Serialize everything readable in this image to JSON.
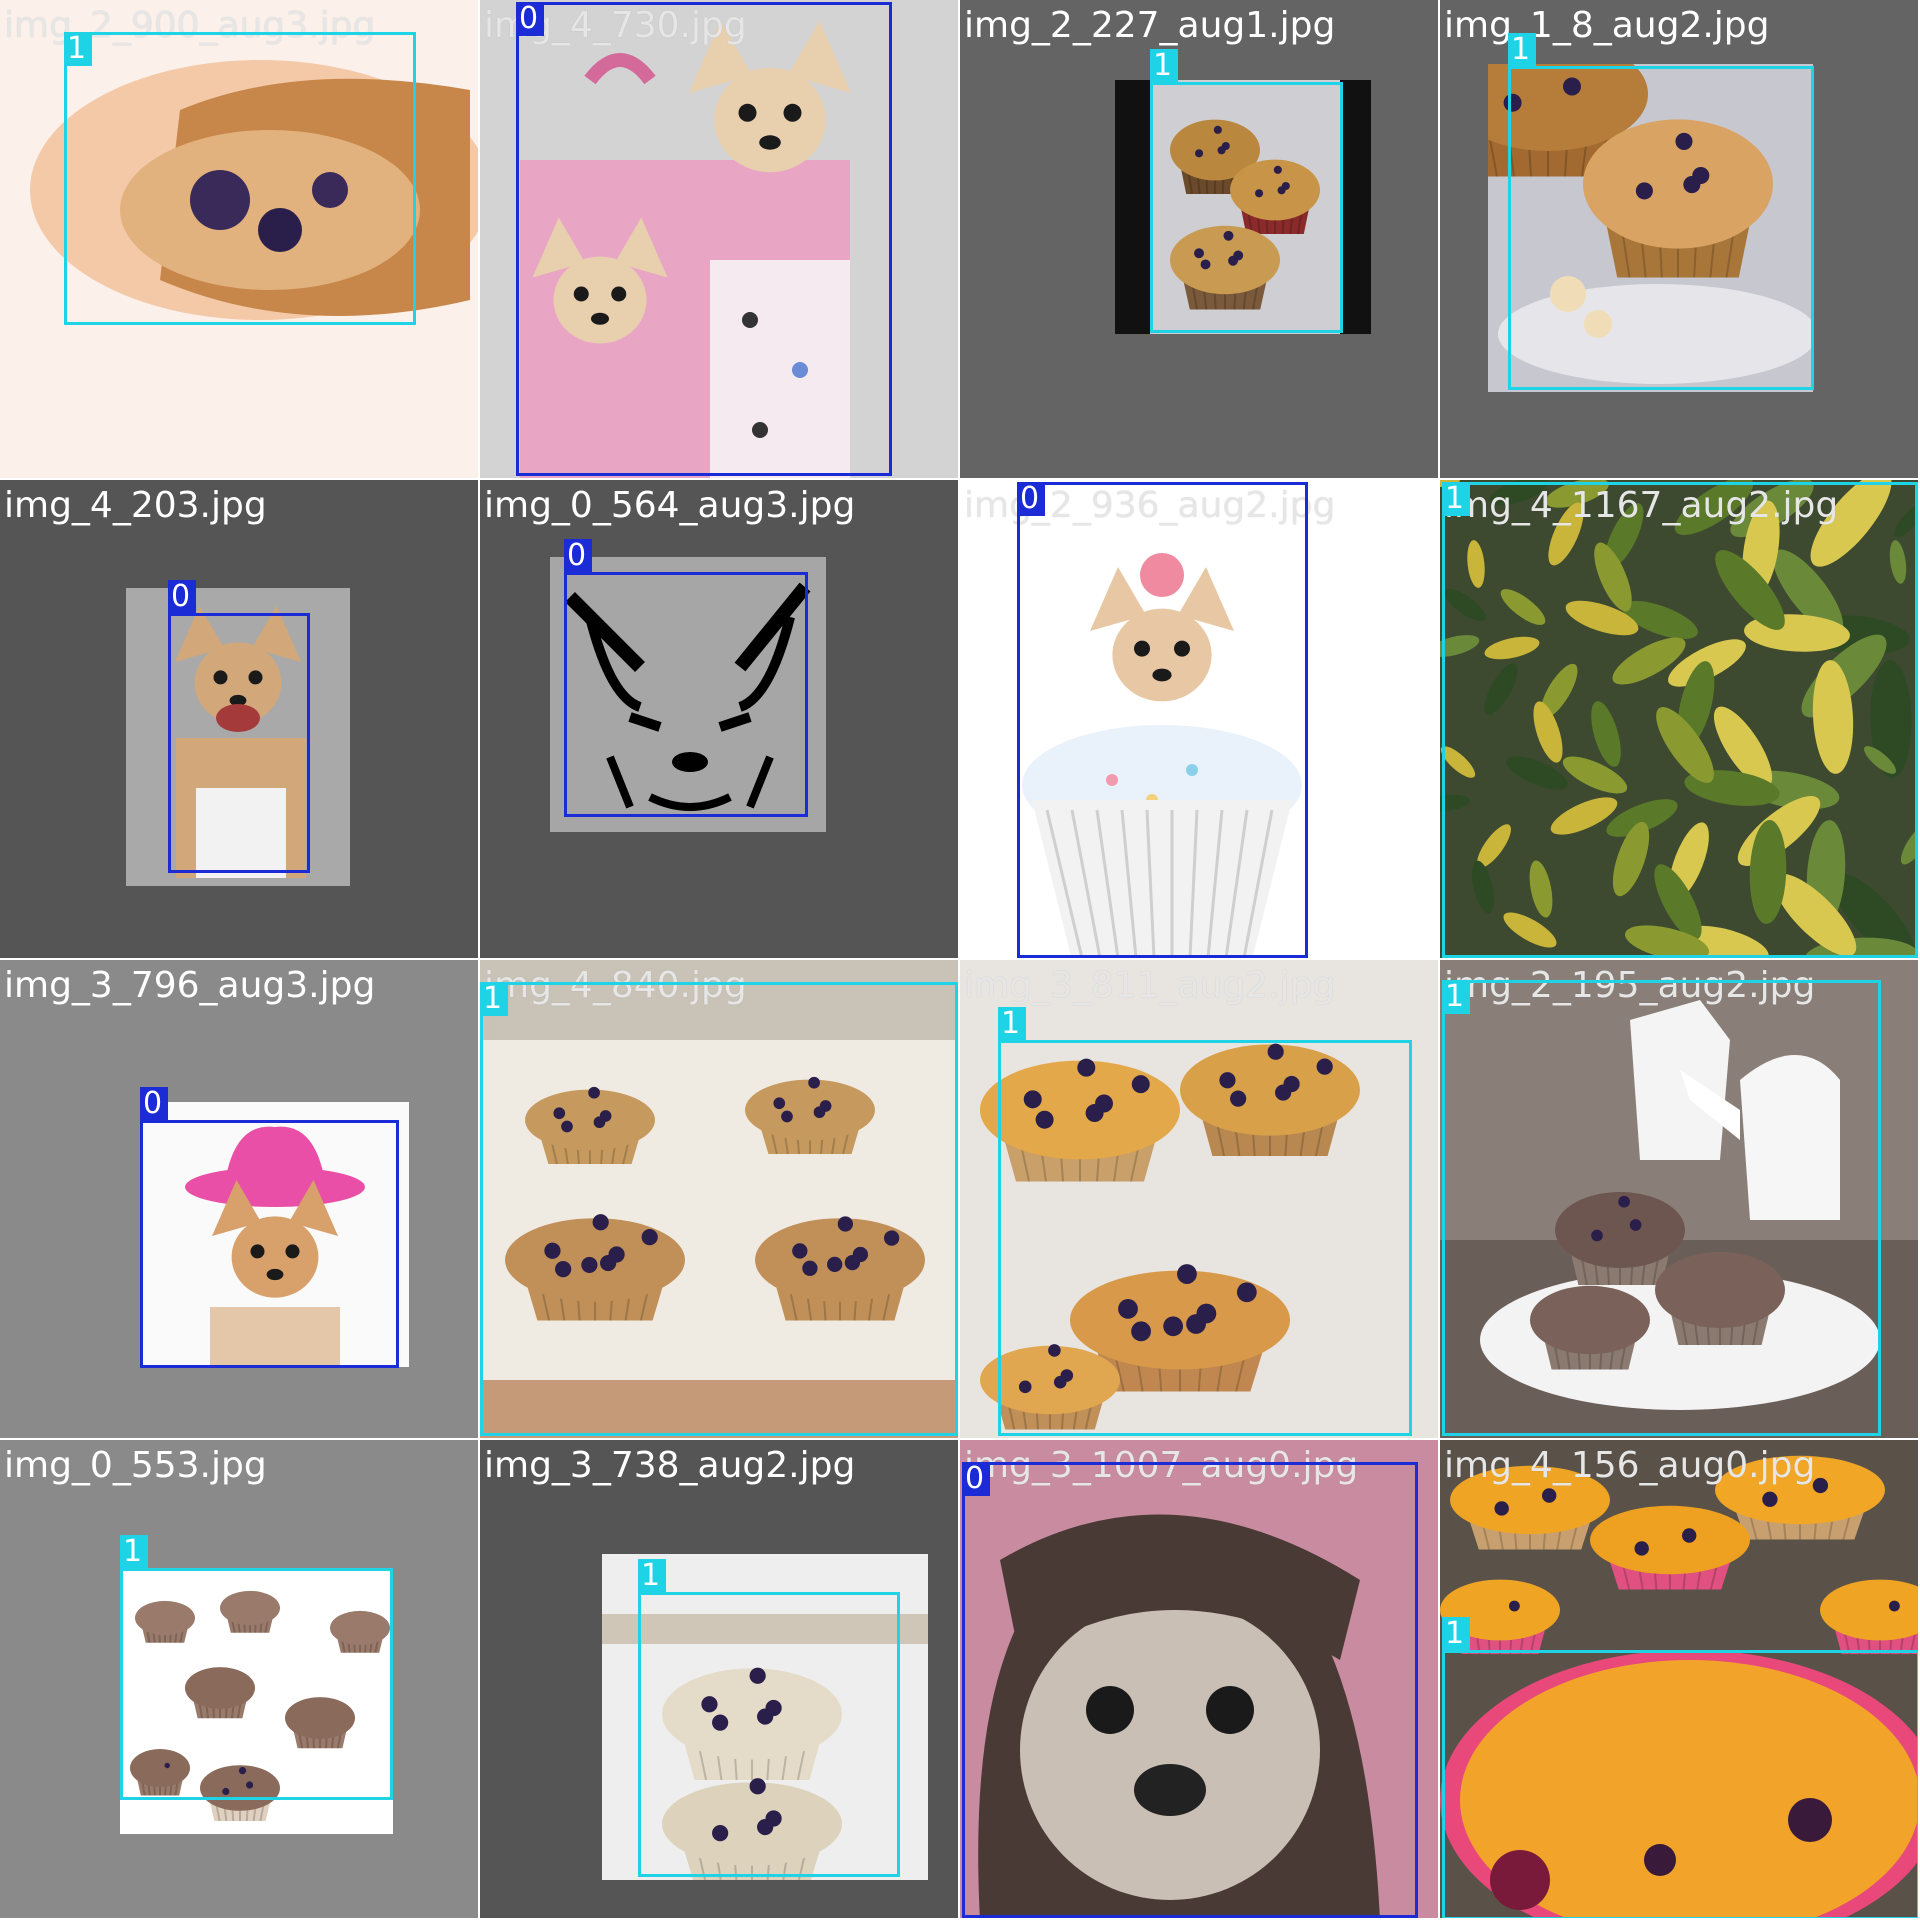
{
  "colors": {
    "class_0": "#1b2bd6",
    "class_1": "#1fd3e6",
    "label_light": "#e6e6e6",
    "label_dark": "#ffffff"
  },
  "tiles": [
    {
      "filename": "img_2_900_aug3.jpg",
      "boxes": [
        {
          "cls": "1"
        }
      ]
    },
    {
      "filename": "img_4_730.jpg",
      "boxes": [
        {
          "cls": "0"
        }
      ]
    },
    {
      "filename": "img_2_227_aug1.jpg",
      "boxes": [
        {
          "cls": "1"
        }
      ]
    },
    {
      "filename": "img_1_8_aug2.jpg",
      "boxes": [
        {
          "cls": "1"
        }
      ]
    },
    {
      "filename": "img_4_203.jpg",
      "boxes": [
        {
          "cls": "0"
        }
      ]
    },
    {
      "filename": "img_0_564_aug3.jpg",
      "boxes": [
        {
          "cls": "0"
        }
      ]
    },
    {
      "filename": "img_2_936_aug2.jpg",
      "boxes": [
        {
          "cls": "0"
        }
      ]
    },
    {
      "filename": "img_4_1167_aug2.jpg",
      "boxes": [
        {
          "cls": "1"
        }
      ]
    },
    {
      "filename": "img_3_796_aug3.jpg",
      "boxes": [
        {
          "cls": "0"
        }
      ]
    },
    {
      "filename": "img_4_840.jpg",
      "boxes": [
        {
          "cls": "1"
        }
      ]
    },
    {
      "filename": "img_3_811_aug2.jpg",
      "boxes": [
        {
          "cls": "1"
        }
      ]
    },
    {
      "filename": "img_2_195_aug2.jpg",
      "boxes": [
        {
          "cls": "1"
        }
      ]
    },
    {
      "filename": "img_0_553.jpg",
      "boxes": [
        {
          "cls": "1"
        }
      ]
    },
    {
      "filename": "img_3_738_aug2.jpg",
      "boxes": [
        {
          "cls": "1"
        }
      ]
    },
    {
      "filename": "img_3_1007_aug0.jpg",
      "boxes": [
        {
          "cls": "0"
        }
      ]
    },
    {
      "filename": "img_4_156_aug0.jpg",
      "boxes": [
        {
          "cls": "1"
        }
      ]
    }
  ]
}
